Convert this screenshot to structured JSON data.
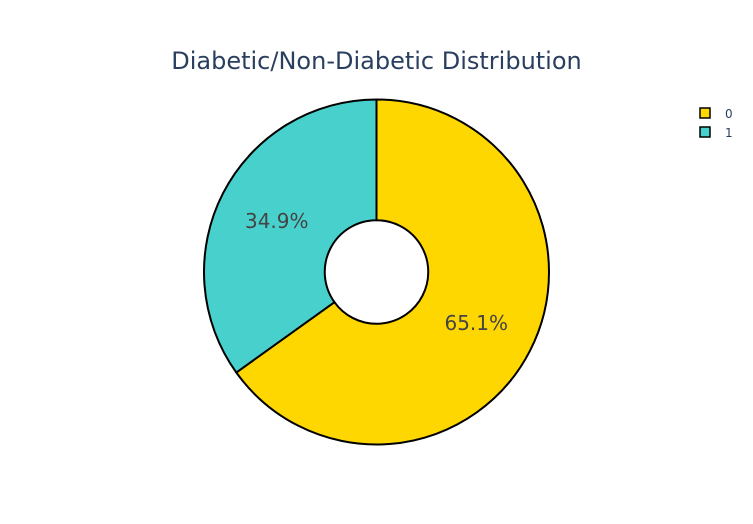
{
  "chart_data": {
    "type": "pie",
    "title": "Diabetic/Non-Diabetic Distribution",
    "labels": [
      "0",
      "1"
    ],
    "values": [
      65.1,
      34.9
    ],
    "text_labels": [
      "65.1%",
      "34.9%"
    ],
    "colors": [
      "#FFD700",
      "#48D1CC"
    ],
    "hole": 0.3,
    "legend_position": "top-right",
    "slice_outline_color": "#000000"
  }
}
